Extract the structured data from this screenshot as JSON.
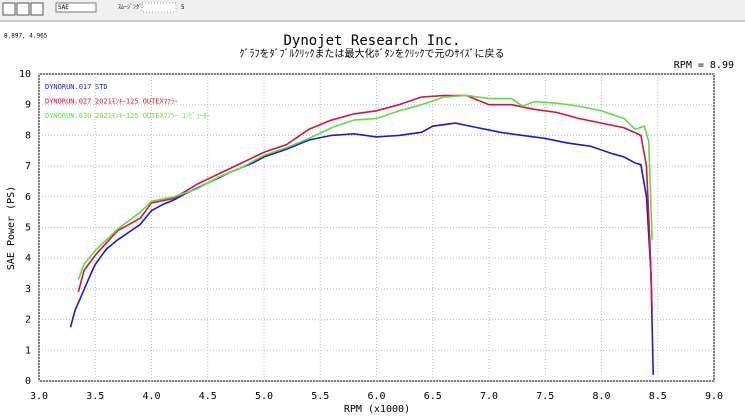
{
  "toolbar": {
    "unit": "SAE",
    "smoothing_label": "ｽﾑｰｼﾞﾝｸﾞ",
    "smoothing_value": "5"
  },
  "cursor": "8.897, 4.965",
  "chart_data": {
    "type": "line",
    "title": "Dynojet  Research  Inc.",
    "subtitle": "ｸﾞﾗﾌをﾀﾞﾌﾞﾙｸﾘｯｸまたは最大化ﾎﾞﾀﾝをｸﾘｯｸで元のｻｲｽﾞに戻る",
    "annotation": "RPM = 8.99",
    "x_label": "RPM (x1000)",
    "y_label": "SAE Power (PS)",
    "xlim": [
      3,
      9
    ],
    "ylim": [
      0,
      10
    ],
    "xticks": [
      {
        "value": 3,
        "label": "3.0"
      },
      {
        "value": 3.5,
        "label": "3.5"
      },
      {
        "value": 4,
        "label": "4.0"
      },
      {
        "value": 4.5,
        "label": "4.5"
      },
      {
        "value": 5,
        "label": "5.0"
      },
      {
        "value": 5.5,
        "label": "5.5"
      },
      {
        "value": 6,
        "label": "6.0"
      },
      {
        "value": 6.5,
        "label": "6.5"
      },
      {
        "value": 7,
        "label": "7.0"
      },
      {
        "value": 7.5,
        "label": "7.5"
      },
      {
        "value": 8,
        "label": "8.0"
      },
      {
        "value": 8.5,
        "label": "8.5"
      },
      {
        "value": 9,
        "label": "9.0"
      }
    ],
    "yticks": [
      0,
      1,
      2,
      3,
      4,
      5,
      6,
      7,
      8,
      9,
      10
    ],
    "grid": true,
    "series": [
      {
        "name": "DYNORUN.017",
        "label": "STD",
        "color": "#1a1adc",
        "x": [
          3.28,
          3.32,
          3.38,
          3.45,
          3.5,
          3.6,
          3.7,
          3.8,
          3.9,
          4.0,
          4.1,
          4.2,
          4.3,
          4.5,
          4.7,
          4.9,
          5.0,
          5.2,
          5.4,
          5.6,
          5.8,
          6.0,
          6.2,
          6.4,
          6.5,
          6.7,
          6.9,
          7.1,
          7.3,
          7.5,
          7.7,
          7.9,
          8.1,
          8.2,
          8.3,
          8.35,
          8.4,
          8.44,
          8.46
        ],
        "values": [
          1.75,
          2.3,
          2.8,
          3.4,
          3.8,
          4.3,
          4.6,
          4.85,
          5.1,
          5.55,
          5.75,
          5.9,
          6.1,
          6.45,
          6.8,
          7.1,
          7.3,
          7.55,
          7.85,
          8.0,
          8.05,
          7.95,
          8.0,
          8.1,
          8.3,
          8.4,
          8.25,
          8.1,
          8.0,
          7.9,
          7.75,
          7.65,
          7.4,
          7.3,
          7.1,
          7.05,
          6.0,
          3.5,
          0.2
        ]
      },
      {
        "name": "DYNORUN.027",
        "label": "2021ﾓﾝｷｰ125 OUTEXﾏﾌﾗｰ",
        "color": "#e0103a",
        "x": [
          3.35,
          3.4,
          3.5,
          3.7,
          3.9,
          4.0,
          4.2,
          4.4,
          4.6,
          4.8,
          5.0,
          5.2,
          5.4,
          5.6,
          5.8,
          6.0,
          6.2,
          6.4,
          6.6,
          6.8,
          7.0,
          7.2,
          7.4,
          7.6,
          7.8,
          8.0,
          8.2,
          8.35,
          8.4,
          8.43,
          8.45
        ],
        "values": [
          2.9,
          3.6,
          4.1,
          4.9,
          5.3,
          5.8,
          5.95,
          6.4,
          6.75,
          7.1,
          7.45,
          7.7,
          8.2,
          8.5,
          8.7,
          8.8,
          9.0,
          9.25,
          9.3,
          9.3,
          9.0,
          9.0,
          8.85,
          8.75,
          8.55,
          8.4,
          8.25,
          8.0,
          7.0,
          4.5,
          2.3
        ]
      },
      {
        "name": "DYNORUN.030",
        "label": "2021ﾓﾝｷｰ125 OUTEXﾏﾌﾗｰ ｺﾝﾋﾟｭｰﾀｰ",
        "color": "#5ce03a",
        "x": [
          3.35,
          3.4,
          3.5,
          3.7,
          3.9,
          4.0,
          4.2,
          4.4,
          4.6,
          4.8,
          5.0,
          5.2,
          5.4,
          5.6,
          5.8,
          6.0,
          6.2,
          6.4,
          6.6,
          6.8,
          7.0,
          7.2,
          7.3,
          7.4,
          7.6,
          7.8,
          8.0,
          8.2,
          8.3,
          8.38,
          8.42,
          8.45
        ],
        "values": [
          3.3,
          3.8,
          4.25,
          4.95,
          5.5,
          5.85,
          6.0,
          6.25,
          6.65,
          6.95,
          7.35,
          7.6,
          7.9,
          8.25,
          8.5,
          8.55,
          8.8,
          9.0,
          9.25,
          9.3,
          9.2,
          9.2,
          8.95,
          9.1,
          9.05,
          8.95,
          8.8,
          8.55,
          8.2,
          8.3,
          7.8,
          4.6
        ]
      }
    ]
  }
}
